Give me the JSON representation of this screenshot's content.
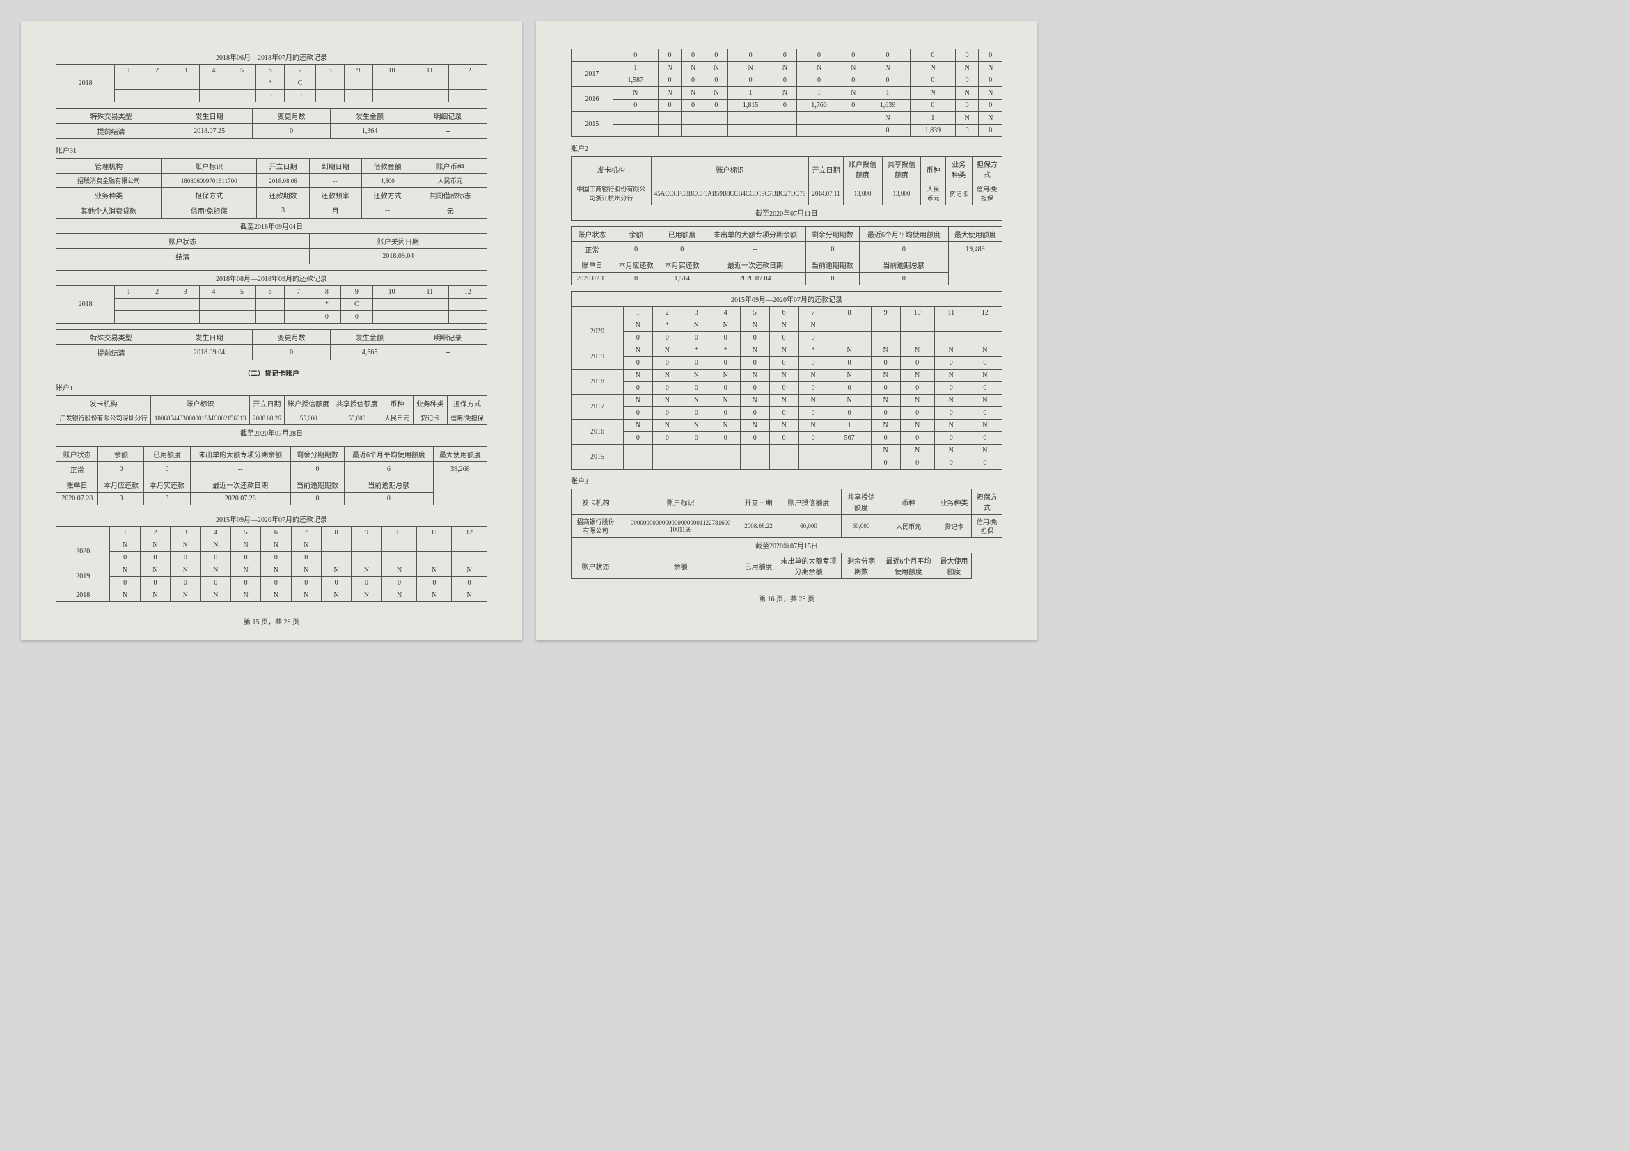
{
  "p15": {
    "top_table": {
      "title": "2018年06月—2018年07月的还款记录",
      "year": "2018",
      "cols": [
        "1",
        "2",
        "3",
        "4",
        "5",
        "6",
        "7",
        "8",
        "9",
        "10",
        "11",
        "12"
      ],
      "row1": [
        "",
        "",
        "",
        "",
        "",
        "*",
        "C",
        "",
        "",
        "",
        "",
        ""
      ],
      "row2": [
        "",
        "",
        "",
        "",
        "",
        "0",
        "0",
        "",
        "",
        "",
        "",
        ""
      ]
    },
    "sp1": {
      "h": [
        "特殊交易类型",
        "发生日期",
        "变更月数",
        "发生金额",
        "明细记录"
      ],
      "r": [
        "提前结清",
        "2018.07.25",
        "0",
        "1,364",
        "--"
      ]
    },
    "a31": {
      "label": "账户31",
      "h1": [
        "管理机构",
        "账户标识",
        "开立日期",
        "到期日期",
        "借款金额",
        "账户币种"
      ],
      "r1": [
        "招联消费金融有限公司",
        "180806009701611700",
        "2018.08.06",
        "--",
        "4,500",
        "人民币元"
      ],
      "h2": [
        "业务种类",
        "担保方式",
        "还款期数",
        "还款频率",
        "还款方式",
        "共同借款标志"
      ],
      "r2": [
        "其他个人消费贷款",
        "信用/免担保",
        "3",
        "月",
        "--",
        "无"
      ],
      "asof": "截至2018年09月04日",
      "h3": [
        "账户状态",
        "账户关闭日期"
      ],
      "r3": [
        "结清",
        "2018.09.04"
      ],
      "pay_title": "2018年08月—2018年09月的还款记录",
      "year": "2018",
      "cols": [
        "1",
        "2",
        "3",
        "4",
        "5",
        "6",
        "7",
        "8",
        "9",
        "10",
        "11",
        "12"
      ],
      "prow1": [
        "",
        "",
        "",
        "",
        "",
        "",
        "",
        "*",
        "C",
        "",
        "",
        ""
      ],
      "prow2": [
        "",
        "",
        "",
        "",
        "",
        "",
        "",
        "0",
        "0",
        "",
        "",
        ""
      ]
    },
    "sp2": {
      "h": [
        "特殊交易类型",
        "发生日期",
        "变更月数",
        "发生金额",
        "明细记录"
      ],
      "r": [
        "提前结清",
        "2018.09.04",
        "0",
        "4,565",
        "--"
      ]
    },
    "section": "（二）贷记卡账户",
    "a1": {
      "label": "账户1",
      "h1": [
        "发卡机构",
        "账户标识",
        "开立日期",
        "账户授信额度",
        "共享授信额度",
        "币种",
        "业务种类",
        "担保方式"
      ],
      "r1": [
        "广发银行股份有限公司深圳分行",
        "1006854433000001SMC002156013",
        "2008.08.26",
        "55,000",
        "55,000",
        "人民币元",
        "贷记卡",
        "信用/免担保"
      ],
      "asof": "截至2020年07月28日",
      "h2": [
        "账户状态",
        "余额",
        "已用额度",
        "未出单的大额专项分期余额",
        "剩余分期期数",
        "最近6个月平均使用额度",
        "最大使用额度"
      ],
      "r2": [
        "正常",
        "0",
        "0",
        "--",
        "0",
        "6",
        "39,268"
      ],
      "h3": [
        "账单日",
        "本月应还款",
        "本月实还款",
        "最近一次还款日期",
        "当前逾期期数",
        "当前逾期总额"
      ],
      "r3": [
        "2020.07.28",
        "3",
        "3",
        "2020.07.28",
        "0",
        "0"
      ],
      "pay_title": "2015年09月—2020年07月的还款记录",
      "cols": [
        "1",
        "2",
        "3",
        "4",
        "5",
        "6",
        "7",
        "8",
        "9",
        "10",
        "11",
        "12"
      ],
      "rows": [
        {
          "y": "2020",
          "a": [
            "N",
            "N",
            "N",
            "N",
            "N",
            "N",
            "N",
            "",
            "",
            "",
            "",
            ""
          ],
          "b": [
            "0",
            "0",
            "0",
            "0",
            "0",
            "0",
            "0",
            "",
            "",
            "",
            "",
            ""
          ]
        },
        {
          "y": "2019",
          "a": [
            "N",
            "N",
            "N",
            "N",
            "N",
            "N",
            "N",
            "N",
            "N",
            "N",
            "N",
            "N"
          ],
          "b": [
            "0",
            "0",
            "0",
            "0",
            "0",
            "0",
            "0",
            "0",
            "0",
            "0",
            "0",
            "0"
          ]
        },
        {
          "y": "2018",
          "a": [
            "N",
            "N",
            "N",
            "N",
            "N",
            "N",
            "N",
            "N",
            "N",
            "N",
            "N",
            "N"
          ]
        }
      ]
    }
  },
  "p16": {
    "top": {
      "cols": 12,
      "rows": [
        {
          "y": "",
          "a": [
            "0",
            "0",
            "0",
            "0",
            "0",
            "0",
            "0",
            "0",
            "0",
            "0",
            "0",
            "0"
          ]
        },
        {
          "y": "2017",
          "a": [
            "1",
            "N",
            "N",
            "N",
            "N",
            "N",
            "N",
            "N",
            "N",
            "N",
            "N",
            "N"
          ],
          "b": [
            "1,587",
            "0",
            "0",
            "0",
            "0",
            "0",
            "0",
            "0",
            "0",
            "0",
            "0",
            "0"
          ]
        },
        {
          "y": "2016",
          "a": [
            "N",
            "N",
            "N",
            "N",
            "1",
            "N",
            "1",
            "N",
            "1",
            "N",
            "N",
            "N"
          ],
          "b": [
            "0",
            "0",
            "0",
            "0",
            "1,815",
            "0",
            "1,760",
            "0",
            "1,639",
            "0",
            "0",
            "0"
          ]
        },
        {
          "y": "2015",
          "a": [
            "",
            "",
            "",
            "",
            "",
            "",
            "",
            "",
            "N",
            "1",
            "N",
            "N"
          ],
          "b": [
            "",
            "",
            "",
            "",
            "",
            "",
            "",
            "",
            "0",
            "1,839",
            "0",
            "0"
          ]
        }
      ]
    },
    "a2": {
      "label": "账户2",
      "h1": [
        "发卡机构",
        "账户标识",
        "开立日期",
        "账户授信额度",
        "共享授信额度",
        "币种",
        "业务种类",
        "担保方式"
      ],
      "r1": [
        "中国工商银行股份有限公司浙江杭州分行",
        "45ACCCFC8BCCF3AB59B8CCB4CCD19C7BBC27DC79",
        "2014.07.11",
        "13,000",
        "13,000",
        "人民币元",
        "贷记卡",
        "信用/免担保"
      ],
      "asof": "截至2020年07月11日",
      "h2": [
        "账户状态",
        "余额",
        "已用额度",
        "未出单的大额专项分期余额",
        "剩余分期期数",
        "最近6个月平均使用额度",
        "最大使用额度"
      ],
      "r2": [
        "正常",
        "0",
        "0",
        "--",
        "0",
        "0",
        "19,489"
      ],
      "h3": [
        "账单日",
        "本月应还款",
        "本月实还款",
        "最近一次还款日期",
        "当前逾期期数",
        "当前逾期总额"
      ],
      "r3": [
        "2020.07.11",
        "0",
        "1,514",
        "2020.07.04",
        "0",
        "0"
      ],
      "pay_title": "2015年09月—2020年07月的还款记录",
      "cols": [
        "1",
        "2",
        "3",
        "4",
        "5",
        "6",
        "7",
        "8",
        "9",
        "10",
        "11",
        "12"
      ],
      "rows": [
        {
          "y": "2020",
          "a": [
            "N",
            "*",
            "N",
            "N",
            "N",
            "N",
            "N",
            "",
            "",
            "",
            "",
            ""
          ],
          "b": [
            "0",
            "0",
            "0",
            "0",
            "0",
            "0",
            "0",
            "",
            "",
            "",
            "",
            ""
          ]
        },
        {
          "y": "2019",
          "a": [
            "N",
            "N",
            "*",
            "*",
            "N",
            "N",
            "*",
            "N",
            "N",
            "N",
            "N",
            "N"
          ],
          "b": [
            "0",
            "0",
            "0",
            "0",
            "0",
            "0",
            "0",
            "0",
            "0",
            "0",
            "0",
            "0"
          ]
        },
        {
          "y": "2018",
          "a": [
            "N",
            "N",
            "N",
            "N",
            "N",
            "N",
            "N",
            "N",
            "N",
            "N",
            "N",
            "N"
          ],
          "b": [
            "0",
            "0",
            "0",
            "0",
            "0",
            "0",
            "0",
            "0",
            "0",
            "0",
            "0",
            "0"
          ]
        },
        {
          "y": "2017",
          "a": [
            "N",
            "N",
            "N",
            "N",
            "N",
            "N",
            "N",
            "N",
            "N",
            "N",
            "N",
            "N"
          ],
          "b": [
            "0",
            "0",
            "0",
            "0",
            "0",
            "0",
            "0",
            "0",
            "0",
            "0",
            "0",
            "0"
          ]
        },
        {
          "y": "2016",
          "a": [
            "N",
            "N",
            "N",
            "N",
            "N",
            "N",
            "N",
            "1",
            "N",
            "N",
            "N",
            "N"
          ],
          "b": [
            "0",
            "0",
            "0",
            "0",
            "0",
            "0",
            "0",
            "567",
            "0",
            "0",
            "0",
            "0"
          ]
        },
        {
          "y": "2015",
          "a": [
            "",
            "",
            "",
            "",
            "",
            "",
            "",
            "",
            "N",
            "N",
            "N",
            "N"
          ],
          "b": [
            "",
            "",
            "",
            "",
            "",
            "",
            "",
            "",
            "0",
            "0",
            "0",
            "0"
          ]
        }
      ]
    },
    "a3": {
      "label": "账户3",
      "h1": [
        "发卡机构",
        "账户标识",
        "开立日期",
        "账户授信额度",
        "共享授信额度",
        "币种",
        "业务种类",
        "担保方式"
      ],
      "r1": [
        "招商银行股份有限公司",
        "00000000000000000000001122781600 1001156",
        "2008.08.22",
        "60,000",
        "60,000",
        "人民币元",
        "贷记卡",
        "信用/免担保"
      ],
      "asof": "截至2020年07月15日",
      "h2": [
        "账户状态",
        "余额",
        "已用额度",
        "未出单的大额专项分期余额",
        "剩余分期期数",
        "最近6个月平均使用额度",
        "最大使用额度"
      ]
    }
  },
  "footer15": "第 15 页，共 28 页",
  "footer16": "第 16 页，共 28 页"
}
